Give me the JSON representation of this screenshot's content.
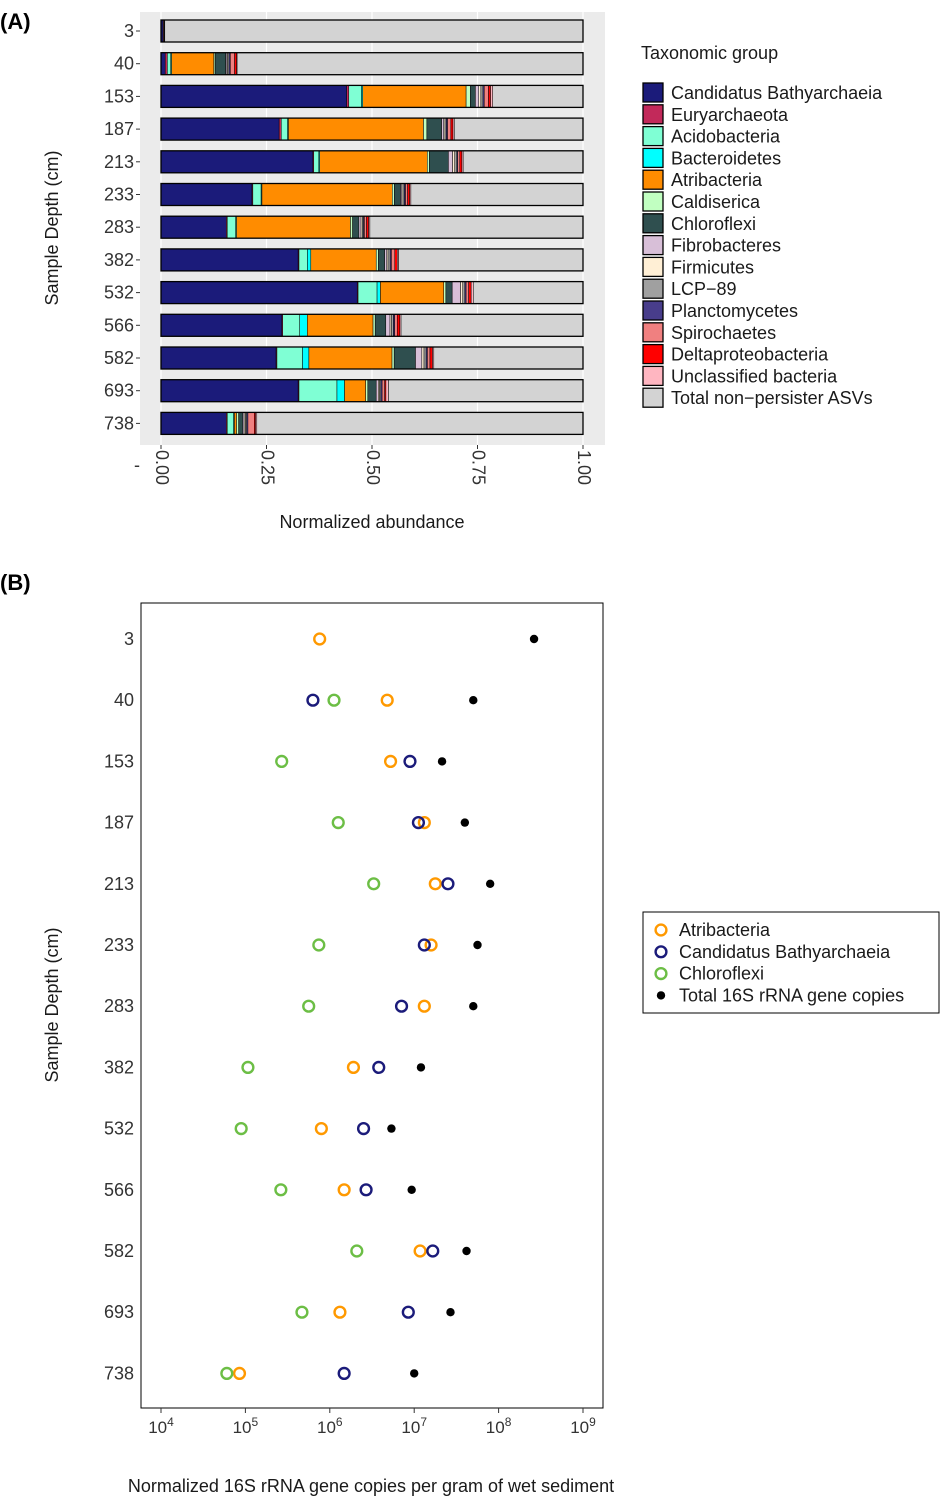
{
  "chart_data": [
    {
      "type": "bar",
      "stacked": true,
      "orientation": "horizontal",
      "panel_label": "(A)",
      "xlabel": "Normalized abundance",
      "ylabel": "Sample Depth (cm)",
      "xlim": [
        0,
        1
      ],
      "x_ticks": [
        "0.00",
        "0.25",
        "0.50",
        "0.75",
        "1.00"
      ],
      "legend_title": "Taxonomic group",
      "legend_position": "right",
      "categories": [
        "3",
        "40",
        "153",
        "187",
        "213",
        "233",
        "283",
        "382",
        "532",
        "566",
        "582",
        "693",
        "738"
      ],
      "series": [
        {
          "name": "Candidatus Bathyarchaeia",
          "color": "#1B1B7A",
          "values": [
            0.005,
            0.01,
            0.44,
            0.28,
            0.36,
            0.22,
            0.155,
            0.325,
            0.465,
            0.285,
            0.27,
            0.325,
            0.155
          ]
        },
        {
          "name": "Euryarchaeota",
          "color": "#C2295A",
          "values": [
            0,
            0.005,
            0.005,
            0.005,
            0.002,
            0.002,
            0.002,
            0.002,
            0.002,
            0.002,
            0.002,
            0.002,
            0.002
          ]
        },
        {
          "name": "Acidobacteria",
          "color": "#7FFFD4",
          "values": [
            0,
            0.008,
            0.03,
            0.015,
            0.012,
            0.02,
            0.02,
            0.02,
            0.045,
            0.04,
            0.06,
            0.09,
            0.015
          ]
        },
        {
          "name": "Bacteroidetes",
          "color": "#00FFFF",
          "values": [
            0,
            0.002,
            0.003,
            0.002,
            0.002,
            0.002,
            0.002,
            0.008,
            0.008,
            0.018,
            0.015,
            0.018,
            0.002
          ]
        },
        {
          "name": "Atribacteria",
          "color": "#FF8C00",
          "values": [
            0,
            0.1,
            0.245,
            0.32,
            0.255,
            0.315,
            0.27,
            0.155,
            0.15,
            0.155,
            0.195,
            0.05,
            0.005
          ]
        },
        {
          "name": "Caldiserica",
          "color": "#C1FFC1",
          "values": [
            0,
            0.003,
            0.01,
            0.008,
            0.005,
            0.005,
            0.005,
            0.005,
            0.005,
            0.005,
            0.005,
            0.005,
            0.005
          ]
        },
        {
          "name": "Chloroflexi",
          "color": "#2F4F4F",
          "values": [
            0,
            0.025,
            0.012,
            0.035,
            0.045,
            0.015,
            0.015,
            0.015,
            0.015,
            0.025,
            0.05,
            0.02,
            0.01
          ]
        },
        {
          "name": "Fibrobacteres",
          "color": "#D8BFD8",
          "values": [
            0,
            0.003,
            0.008,
            0.005,
            0.01,
            0.003,
            0.005,
            0.005,
            0.02,
            0.01,
            0.015,
            0.005,
            0.003
          ]
        },
        {
          "name": "Firmicutes",
          "color": "#FFEFD5",
          "values": [
            0,
            0.002,
            0.005,
            0.003,
            0.005,
            0.003,
            0.003,
            0.003,
            0.005,
            0.003,
            0.005,
            0.003,
            0.003
          ]
        },
        {
          "name": "LCP−89",
          "color": "#A0A0A0",
          "values": [
            0,
            0.003,
            0.005,
            0.003,
            0.005,
            0.003,
            0.003,
            0.005,
            0.005,
            0.005,
            0.005,
            0.003,
            0.003
          ]
        },
        {
          "name": "Planctomycetes",
          "color": "#483D8B",
          "values": [
            0,
            0.003,
            0.003,
            0.003,
            0.002,
            0.003,
            0.002,
            0.003,
            0.003,
            0.003,
            0.003,
            0.003,
            0.003
          ]
        },
        {
          "name": "Spirochaetes",
          "color": "#F08080",
          "values": [
            0.002,
            0.01,
            0.01,
            0.008,
            0.005,
            0.005,
            0.005,
            0.008,
            0.006,
            0.006,
            0.006,
            0.006,
            0.015
          ]
        },
        {
          "name": "Deltaproteobacteria",
          "color": "#FF0000",
          "values": [
            0.001,
            0.005,
            0.005,
            0.005,
            0.005,
            0.005,
            0.005,
            0.006,
            0.006,
            0.006,
            0.006,
            0.003,
            0.003
          ]
        },
        {
          "name": "Unclassified bacteria",
          "color": "#FFB6C1",
          "values": [
            0.001,
            0.001,
            0.005,
            0.003,
            0.003,
            0.003,
            0.003,
            0.003,
            0.005,
            0.003,
            0.003,
            0.006,
            0.003
          ]
        },
        {
          "name": "Total non−persister ASVs",
          "color": "#D3D3D3",
          "values": [
            0.991,
            0.818,
            0.214,
            0.305,
            0.284,
            0.416,
            0.505,
            0.437,
            0.26,
            0.429,
            0.35,
            0.461,
            0.773
          ]
        }
      ]
    },
    {
      "type": "scatter",
      "panel_label": "(B)",
      "xlabel": "Normalized 16S rRNA gene copies per gram of wet sediment",
      "ylabel": "Sample Depth (cm)",
      "x_scale": "log10",
      "xlim_log10": [
        4,
        9
      ],
      "x_tick_base": "10",
      "x_tick_exponents": [
        "4",
        "5",
        "6",
        "7",
        "8",
        "9"
      ],
      "legend_position": "right",
      "categories": [
        "3",
        "40",
        "153",
        "187",
        "213",
        "233",
        "283",
        "382",
        "532",
        "566",
        "582",
        "693",
        "738"
      ],
      "series": [
        {
          "name": "Atribacteria",
          "color": "#FF9900",
          "marker": "open-circle",
          "log10_values": [
            5.88,
            6.68,
            6.72,
            7.12,
            7.25,
            7.2,
            7.12,
            6.28,
            5.9,
            6.17,
            7.07,
            6.12,
            4.93
          ]
        },
        {
          "name": "Candidatus Bathyarchaeia",
          "color": "#1B1B7A",
          "marker": "open-circle",
          "log10_values": [
            null,
            5.8,
            6.95,
            7.05,
            7.4,
            7.12,
            6.85,
            6.58,
            6.4,
            6.43,
            7.22,
            6.93,
            6.17
          ]
        },
        {
          "name": "Chloroflexi",
          "color": "#6CBE45",
          "marker": "open-circle",
          "log10_values": [
            null,
            6.05,
            5.43,
            6.1,
            6.52,
            5.87,
            5.75,
            5.03,
            4.95,
            5.42,
            6.32,
            5.67,
            4.78
          ]
        },
        {
          "name": "Total 16S rRNA gene copies",
          "color": "#000000",
          "marker": "filled-dot",
          "log10_values": [
            8.42,
            7.7,
            7.33,
            7.6,
            7.9,
            7.75,
            7.7,
            7.08,
            6.73,
            6.97,
            7.62,
            7.43,
            7.0
          ]
        }
      ]
    }
  ]
}
